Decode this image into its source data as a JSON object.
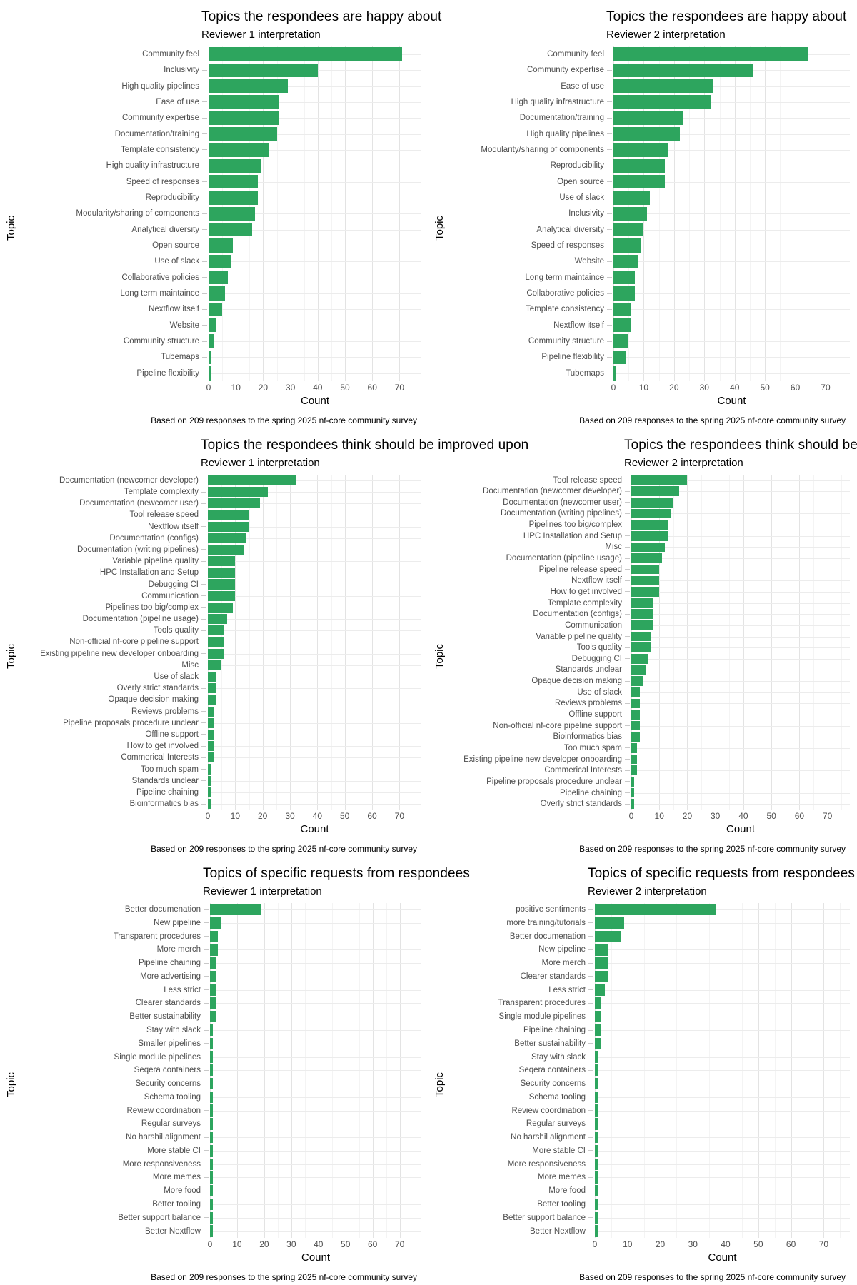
{
  "page": {
    "background": "#ffffff"
  },
  "shared": {
    "xlabel": "Count",
    "ylabel": "Topic",
    "caption": "Based on 209 responses to the spring 2025 nf-core community survey",
    "bar_color": "#2da55e",
    "x_ticks": [
      0,
      10,
      20,
      30,
      40,
      50,
      60,
      70
    ],
    "x_max": 78
  },
  "chart_data": [
    {
      "type": "bar",
      "orientation": "horizontal",
      "title": "Topics the respondees are happy about",
      "subtitle": "Reviewer 1 interpretation",
      "xlabel": "Count",
      "ylabel": "Topic",
      "caption": "Based on 209 responses to the spring 2025 nf-core community survey",
      "xlim": [
        0,
        78
      ],
      "x_ticks": [
        0,
        10,
        20,
        30,
        40,
        50,
        60,
        70
      ],
      "grid": true,
      "categories": [
        "Community feel",
        "Inclusivity",
        "High quality pipelines",
        "Ease of use",
        "Community expertise",
        "Documentation/training",
        "Template consistency",
        "High quality infrastructure",
        "Speed of responses",
        "Reproducibility",
        "Modularity/sharing of components",
        "Analytical diversity",
        "Open source",
        "Use of slack",
        "Collaborative policies",
        "Long term maintaince",
        "Nextflow itself",
        "Website",
        "Community structure",
        "Tubemaps",
        "Pipeline flexibility"
      ],
      "values": [
        71,
        40,
        29,
        26,
        26,
        25,
        22,
        19,
        18,
        18,
        17,
        16,
        9,
        8,
        7,
        6,
        5,
        3,
        2,
        1,
        1
      ]
    },
    {
      "type": "bar",
      "orientation": "horizontal",
      "title": "Topics the respondees are happy about",
      "subtitle": "Reviewer 2 interpretation",
      "xlabel": "Count",
      "ylabel": "Topic",
      "caption": "Based on 209 responses to the spring 2025 nf-core community survey",
      "xlim": [
        0,
        78
      ],
      "x_ticks": [
        0,
        10,
        20,
        30,
        40,
        50,
        60,
        70
      ],
      "grid": true,
      "categories": [
        "Community feel",
        "Community expertise",
        "Ease of use",
        "High quality infrastructure",
        "Documentation/training",
        "High quality pipelines",
        "Modularity/sharing of components",
        "Reproducibility",
        "Open source",
        "Use of slack",
        "Inclusivity",
        "Analytical diversity",
        "Speed of responses",
        "Website",
        "Long term maintaince",
        "Collaborative policies",
        "Template consistency",
        "Nextflow itself",
        "Community structure",
        "Pipeline flexibility",
        "Tubemaps"
      ],
      "values": [
        64,
        46,
        33,
        32,
        23,
        22,
        18,
        17,
        17,
        12,
        11,
        10,
        9,
        8,
        7,
        7,
        6,
        6,
        5,
        4,
        1
      ]
    },
    {
      "type": "bar",
      "orientation": "horizontal",
      "title": "Topics the respondees think should be improved upon",
      "subtitle": "Reviewer 1 interpretation",
      "xlabel": "Count",
      "ylabel": "Topic",
      "caption": "Based on 209 responses to the spring 2025 nf-core community survey",
      "xlim": [
        0,
        78
      ],
      "x_ticks": [
        0,
        10,
        20,
        30,
        40,
        50,
        60,
        70
      ],
      "grid": true,
      "categories": [
        "Documentation (newcomer developer)",
        "Template complexity",
        "Documentation (newcomer user)",
        "Tool release speed",
        "Nextflow itself",
        "Documentation (configs)",
        "Documentation (writing pipelines)",
        "Variable pipeline quality",
        "HPC Installation and Setup",
        "Debugging CI",
        "Communication",
        "Pipelines too big/complex",
        "Documentation (pipeline usage)",
        "Tools quality",
        "Non-official nf-core pipeline support",
        "Existing pipeline new developer onboarding",
        "Misc",
        "Use of slack",
        "Overly strict standards",
        "Opaque decision making",
        "Reviews problems",
        "Pipeline proposals procedure unclear",
        "Offline support",
        "How to get involved",
        "Commerical Interests",
        "Too much spam",
        "Standards unclear",
        "Pipeline chaining",
        "Bioinformatics bias"
      ],
      "values": [
        32,
        22,
        19,
        15,
        15,
        14,
        13,
        10,
        10,
        10,
        10,
        9,
        7,
        6,
        6,
        6,
        5,
        3,
        3,
        3,
        2,
        2,
        2,
        2,
        2,
        1,
        1,
        1,
        1
      ]
    },
    {
      "type": "bar",
      "orientation": "horizontal",
      "title": "Topics the respondees think should be improved upon",
      "subtitle": "Reviewer 2 interpretation",
      "xlabel": "Count",
      "ylabel": "Topic",
      "caption": "Based on 209 responses to the spring 2025 nf-core community survey",
      "xlim": [
        0,
        78
      ],
      "x_ticks": [
        0,
        10,
        20,
        30,
        40,
        50,
        60,
        70
      ],
      "grid": true,
      "categories": [
        "Tool release speed",
        "Documentation (newcomer developer)",
        "Documentation (newcomer user)",
        "Documentation (writing pipelines)",
        "Pipelines too big/complex",
        "HPC Installation and Setup",
        "Misc",
        "Documentation (pipeline usage)",
        "Pipeline release speed",
        "Nextflow itself",
        "How to get involved",
        "Template complexity",
        "Documentation (configs)",
        "Communication",
        "Variable pipeline quality",
        "Tools quality",
        "Debugging CI",
        "Standards unclear",
        "Opaque decision making",
        "Use of slack",
        "Reviews problems",
        "Offline support",
        "Non-official nf-core pipeline support",
        "Bioinformatics bias",
        "Too much spam",
        "Existing pipeline new developer onboarding",
        "Commerical Interests",
        "Pipeline proposals procedure unclear",
        "Pipeline chaining",
        "Overly strict standards"
      ],
      "values": [
        20,
        17,
        15,
        14,
        13,
        13,
        12,
        11,
        10,
        10,
        10,
        8,
        8,
        8,
        7,
        7,
        6,
        5,
        4,
        3,
        3,
        3,
        3,
        3,
        2,
        2,
        2,
        1,
        1,
        1
      ]
    },
    {
      "type": "bar",
      "orientation": "horizontal",
      "title": "Topics of specific requests from respondees",
      "subtitle": "Reviewer 1 interpretation",
      "xlabel": "Count",
      "ylabel": "Topic",
      "caption": "Based on 209 responses to the spring 2025 nf-core community survey",
      "xlim": [
        0,
        78
      ],
      "x_ticks": [
        0,
        10,
        20,
        30,
        40,
        50,
        60,
        70
      ],
      "grid": true,
      "categories": [
        "Better documenation",
        "New pipeline",
        "Transparent procedures",
        "More merch",
        "Pipeline chaining",
        "More advertising",
        "Less strict",
        "Clearer standards",
        "Better sustainability",
        "Stay with slack",
        "Smaller pipelines",
        "Single module pipelines",
        "Seqera containers",
        "Security concerns",
        "Schema tooling",
        "Review coordination",
        "Regular surveys",
        "No harshil alignment",
        "More stable CI",
        "More responsiveness",
        "More memes",
        "More food",
        "Better tooling",
        "Better support balance",
        "Better Nextflow"
      ],
      "values": [
        19,
        4,
        3,
        3,
        2,
        2,
        2,
        2,
        2,
        1,
        1,
        1,
        1,
        1,
        1,
        1,
        1,
        1,
        1,
        1,
        1,
        1,
        1,
        1,
        1
      ]
    },
    {
      "type": "bar",
      "orientation": "horizontal",
      "title": "Topics of specific requests from respondees",
      "subtitle": "Reviewer 2 interpretation",
      "xlabel": "Count",
      "ylabel": "Topic",
      "caption": "Based on 209 responses to the spring 2025 nf-core community survey",
      "xlim": [
        0,
        78
      ],
      "x_ticks": [
        0,
        10,
        20,
        30,
        40,
        50,
        60,
        70
      ],
      "grid": true,
      "categories": [
        "positive sentiments",
        "more training/tutorials",
        "Better documenation",
        "New pipeline",
        "More merch",
        "Clearer standards",
        "Less strict",
        "Transparent procedures",
        "Single module pipelines",
        "Pipeline chaining",
        "Better sustainability",
        "Stay with slack",
        "Seqera containers",
        "Security concerns",
        "Schema tooling",
        "Review coordination",
        "Regular surveys",
        "No harshil alignment",
        "More stable CI",
        "More responsiveness",
        "More memes",
        "More food",
        "Better tooling",
        "Better support balance",
        "Better Nextflow"
      ],
      "values": [
        37,
        9,
        8,
        4,
        4,
        4,
        3,
        2,
        2,
        2,
        2,
        1,
        1,
        1,
        1,
        1,
        1,
        1,
        1,
        1,
        1,
        1,
        1,
        1,
        1
      ]
    }
  ]
}
